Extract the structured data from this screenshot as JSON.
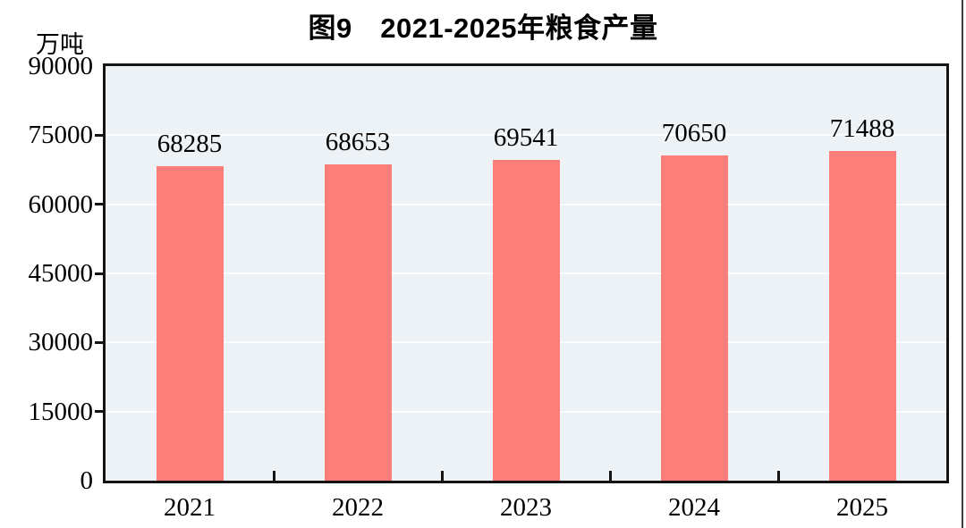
{
  "chart_data": {
    "type": "bar",
    "title": "图9　2021-2025年粮食产量",
    "ylabel": "万吨",
    "xlabel": "",
    "categories": [
      "2021",
      "2022",
      "2023",
      "2024",
      "2025"
    ],
    "values": [
      68285,
      68653,
      69541,
      70650,
      71488
    ],
    "data_labels": [
      "68285",
      "68653",
      "69541",
      "70650",
      "71488"
    ],
    "ylim": [
      0,
      90000
    ],
    "yticks": [
      0,
      15000,
      30000,
      45000,
      60000,
      75000,
      90000
    ],
    "grid": "horizontal",
    "legend": "none",
    "colors": {
      "bar": "#FB7E7B",
      "plot_background": "#EDF2F6",
      "gridline": "#FFFFFF",
      "axis_frame": "#141414",
      "text": "#000000",
      "page_edge_line": "#3C3C3C"
    }
  }
}
